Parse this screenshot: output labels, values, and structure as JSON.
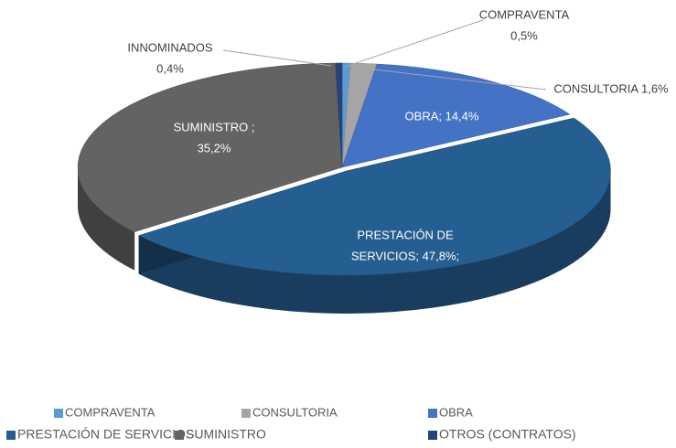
{
  "chart_data": {
    "type": "pie3d",
    "categories": [
      "COMPRAVENTA",
      "CONSULTORIA",
      "OBRA",
      "PRESTACIÓN DE SERVICIOS",
      "SUMINISTRO",
      "OTROS (CONTRATOS)"
    ],
    "values": [
      0.5,
      1.6,
      14.4,
      47.8,
      35.2,
      0.4
    ],
    "value_labels": [
      [
        "COMPRAVENTA",
        "0,5%"
      ],
      [
        "CONSULTORIA 1,6%"
      ],
      [
        "OBRA; 14,4%"
      ],
      [
        "PRESTACIÓN DE",
        "SERVICIOS; 47,8%;"
      ],
      [
        "SUMINISTRO ;",
        "35,2%"
      ],
      [
        "INNOMINADOS",
        "0,4%"
      ]
    ],
    "colors": [
      "#5b9bd5",
      "#a5a5a5",
      "#4472c4",
      "#255e91",
      "#636363",
      "#264478"
    ],
    "legend": "bottom"
  }
}
